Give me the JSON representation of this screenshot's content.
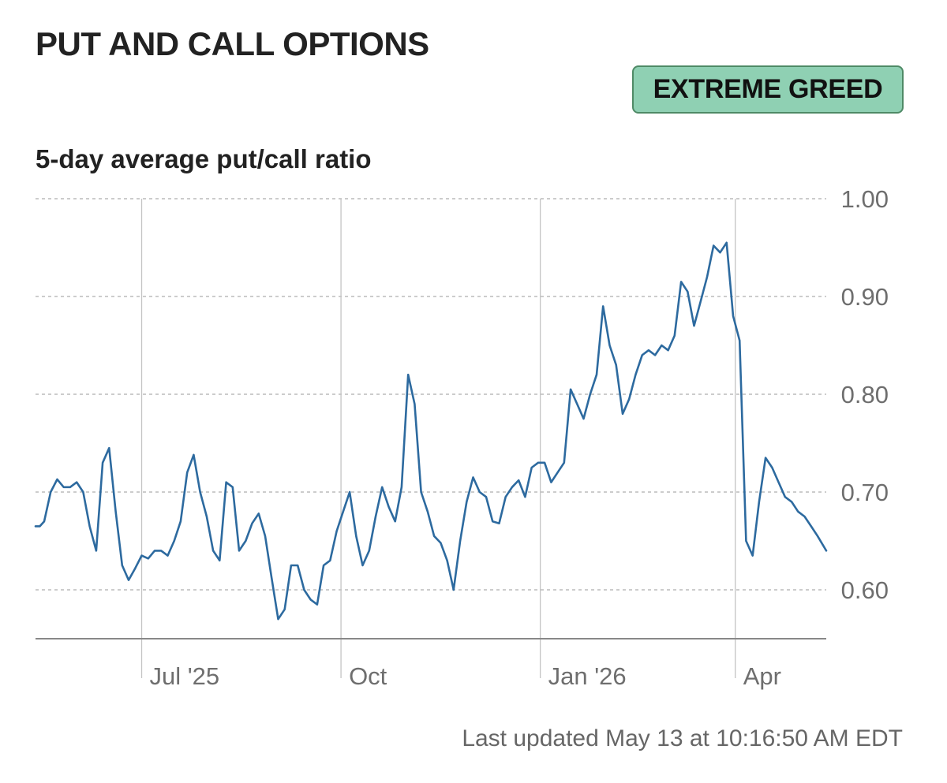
{
  "header": {
    "title": "PUT AND CALL OPTIONS",
    "badge": "EXTREME GREED",
    "subtitle": "5-day average put/call ratio"
  },
  "footer": {
    "last_updated": "Last updated May 13 at 10:16:50 AM EDT"
  },
  "colors": {
    "line": "#2d6a9f",
    "badge_fill": "#8fd0b3",
    "badge_border": "#4f8a66",
    "grid": "#bbbbbb",
    "axis": "#888888"
  },
  "chart_data": {
    "type": "line",
    "title": "5-day average put/call ratio",
    "xlabel": "",
    "ylabel": "",
    "ylim": [
      0.55,
      1.0
    ],
    "y_ticks": [
      {
        "value": 1.0,
        "label": "1.00"
      },
      {
        "value": 0.9,
        "label": "0.90"
      },
      {
        "value": 0.8,
        "label": "0.80"
      },
      {
        "value": 0.7,
        "label": "0.70"
      },
      {
        "value": 0.6,
        "label": "0.60"
      }
    ],
    "xlim": [
      "2025-05-13",
      "2026-05-13"
    ],
    "x_ticks": [
      {
        "date": "2025-07-01",
        "label": "Jul '25"
      },
      {
        "date": "2025-10-01",
        "label": "Oct"
      },
      {
        "date": "2026-01-01",
        "label": "Jan '26"
      },
      {
        "date": "2026-04-01",
        "label": "Apr"
      }
    ],
    "grid": true,
    "series": [
      {
        "x": [
          "2025-05-13",
          "2025-05-15",
          "2025-05-17",
          "2025-05-20",
          "2025-05-23",
          "2025-05-26",
          "2025-05-29",
          "2025-06-01",
          "2025-06-04",
          "2025-06-07",
          "2025-06-10",
          "2025-06-13",
          "2025-06-16",
          "2025-06-19",
          "2025-06-22",
          "2025-06-25",
          "2025-06-28",
          "2025-07-01",
          "2025-07-04",
          "2025-07-07",
          "2025-07-10",
          "2025-07-13",
          "2025-07-16",
          "2025-07-19",
          "2025-07-22",
          "2025-07-25",
          "2025-07-28",
          "2025-07-31",
          "2025-08-03",
          "2025-08-06",
          "2025-08-09",
          "2025-08-12",
          "2025-08-15",
          "2025-08-18",
          "2025-08-21",
          "2025-08-24",
          "2025-08-27",
          "2025-08-30",
          "2025-09-02",
          "2025-09-05",
          "2025-09-08",
          "2025-09-11",
          "2025-09-14",
          "2025-09-17",
          "2025-09-20",
          "2025-09-23",
          "2025-09-26",
          "2025-09-29",
          "2025-10-02",
          "2025-10-05",
          "2025-10-08",
          "2025-10-11",
          "2025-10-14",
          "2025-10-17",
          "2025-10-20",
          "2025-10-23",
          "2025-10-26",
          "2025-10-29",
          "2025-11-01",
          "2025-11-04",
          "2025-11-07",
          "2025-11-10",
          "2025-11-13",
          "2025-11-16",
          "2025-11-19",
          "2025-11-22",
          "2025-11-25",
          "2025-11-28",
          "2025-12-01",
          "2025-12-04",
          "2025-12-07",
          "2025-12-10",
          "2025-12-13",
          "2025-12-16",
          "2025-12-19",
          "2025-12-22",
          "2025-12-25",
          "2025-12-28",
          "2025-12-31",
          "2026-01-03",
          "2026-01-06",
          "2026-01-09",
          "2026-01-12",
          "2026-01-15",
          "2026-01-18",
          "2026-01-21",
          "2026-01-24",
          "2026-01-27",
          "2026-01-30",
          "2026-02-02",
          "2026-02-05",
          "2026-02-08",
          "2026-02-11",
          "2026-02-14",
          "2026-02-17",
          "2026-02-20",
          "2026-02-23",
          "2026-02-26",
          "2026-03-01",
          "2026-03-04",
          "2026-03-07",
          "2026-03-10",
          "2026-03-13",
          "2026-03-16",
          "2026-03-19",
          "2026-03-22",
          "2026-03-25",
          "2026-03-28",
          "2026-03-31",
          "2026-04-03",
          "2026-04-06",
          "2026-04-09",
          "2026-04-12",
          "2026-04-15",
          "2026-04-18",
          "2026-04-21",
          "2026-04-24",
          "2026-04-27",
          "2026-04-30",
          "2026-05-03",
          "2026-05-06",
          "2026-05-09",
          "2026-05-13"
        ],
        "values": [
          0.665,
          0.665,
          0.67,
          0.7,
          0.713,
          0.705,
          0.705,
          0.71,
          0.7,
          0.665,
          0.64,
          0.73,
          0.745,
          0.68,
          0.625,
          0.61,
          0.622,
          0.635,
          0.632,
          0.64,
          0.64,
          0.635,
          0.65,
          0.67,
          0.72,
          0.738,
          0.7,
          0.675,
          0.64,
          0.63,
          0.71,
          0.705,
          0.64,
          0.65,
          0.668,
          0.678,
          0.655,
          0.612,
          0.57,
          0.58,
          0.625,
          0.625,
          0.6,
          0.59,
          0.585,
          0.625,
          0.63,
          0.66,
          0.68,
          0.7,
          0.655,
          0.625,
          0.64,
          0.675,
          0.705,
          0.685,
          0.67,
          0.705,
          0.82,
          0.79,
          0.7,
          0.68,
          0.655,
          0.648,
          0.63,
          0.6,
          0.65,
          0.69,
          0.715,
          0.7,
          0.695,
          0.67,
          0.668,
          0.695,
          0.705,
          0.712,
          0.695,
          0.725,
          0.73,
          0.73,
          0.71,
          0.72,
          0.73,
          0.805,
          0.79,
          0.775,
          0.8,
          0.82,
          0.89,
          0.85,
          0.83,
          0.78,
          0.795,
          0.82,
          0.84,
          0.845,
          0.84,
          0.85,
          0.845,
          0.86,
          0.915,
          0.905,
          0.87,
          0.895,
          0.92,
          0.952,
          0.945,
          0.955,
          0.88,
          0.855,
          0.65,
          0.635,
          0.69,
          0.735,
          0.725,
          0.71,
          0.695,
          0.69,
          0.68,
          0.675,
          0.665,
          0.655,
          0.64
        ]
      }
    ]
  }
}
